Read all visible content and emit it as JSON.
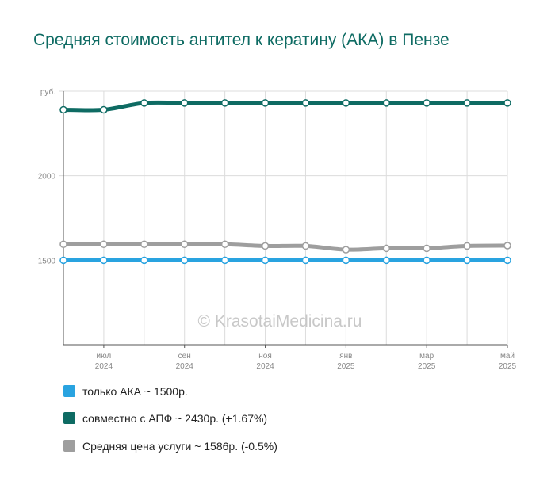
{
  "title": "Средняя стоимость антител к кератину (АКА) в Пензе",
  "watermark": "© KrasotaiMedicina.ru",
  "chart_data": {
    "type": "line",
    "title": "Средняя стоимость антител к кератину (АКА) в Пензе",
    "ylabel": "руб.",
    "ylim": [
      1000,
      2500
    ],
    "yticks": [
      {
        "value": 1500,
        "label": "1500"
      },
      {
        "value": 2000,
        "label": "2000"
      },
      {
        "value": 2500,
        "label": "руб."
      }
    ],
    "x": [
      "2024-06",
      "2024-07",
      "2024-08",
      "2024-09",
      "2024-10",
      "2024-11",
      "2024-12",
      "2025-01",
      "2025-02",
      "2025-03",
      "2025-04",
      "2025-05"
    ],
    "xticks": [
      {
        "month": "июл",
        "year": "2024",
        "index": 1
      },
      {
        "month": "сен",
        "year": "2024",
        "index": 3
      },
      {
        "month": "ноя",
        "year": "2024",
        "index": 5
      },
      {
        "month": "янв",
        "year": "2025",
        "index": 7
      },
      {
        "month": "мар",
        "year": "2025",
        "index": 9
      },
      {
        "month": "май",
        "year": "2025",
        "index": 11
      }
    ],
    "grid": true,
    "series": [
      {
        "name": "только АКА",
        "summary": "только АКА ~ 1500р.",
        "color": "#29a3e0",
        "values": [
          1500,
          1500,
          1500,
          1500,
          1500,
          1500,
          1500,
          1500,
          1500,
          1500,
          1500,
          1500
        ]
      },
      {
        "name": "совместно с АПФ",
        "summary": "совместно с АПФ ~ 2430р. (+1.67%)",
        "color": "#0e6b63",
        "values": [
          2390,
          2390,
          2430,
          2430,
          2430,
          2430,
          2430,
          2430,
          2430,
          2430,
          2430,
          2430
        ]
      },
      {
        "name": "Средняя цена услуги",
        "summary": "Средняя цена услуги ~ 1586р. (-0.5%)",
        "color": "#9e9e9e",
        "values": [
          1594,
          1594,
          1594,
          1594,
          1594,
          1584,
          1584,
          1562,
          1570,
          1570,
          1584,
          1586
        ]
      }
    ]
  }
}
